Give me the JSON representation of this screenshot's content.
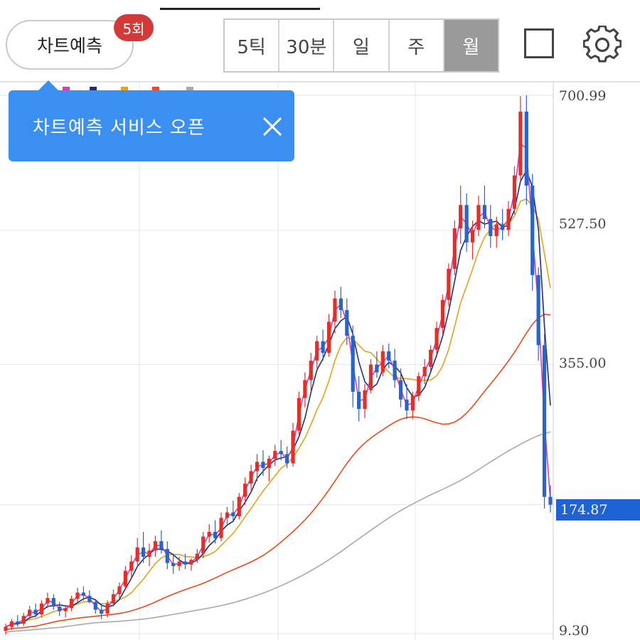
{
  "header": {
    "predict_label": "차트예측",
    "predict_badge": "5회",
    "periods": [
      {
        "label": "5틱",
        "active": false
      },
      {
        "label": "30분",
        "active": false
      },
      {
        "label": "일",
        "active": false
      },
      {
        "label": "주",
        "active": false
      },
      {
        "label": "월",
        "active": true
      }
    ],
    "icons": [
      "square-icon",
      "gear-icon"
    ]
  },
  "tooltip": {
    "text": "차트예측 서비스 오픈",
    "close_icon": "close-icon"
  },
  "price_axis": {
    "labels": [
      "700.99",
      "527.50",
      "355.00",
      "9.30"
    ],
    "current_price": "174.87",
    "current_color": "#1e63d6"
  },
  "colors": {
    "up": "#e0302a",
    "down": "#2a63c9",
    "ma5": "#d63bbd",
    "ma10": "#1f2f7a",
    "ma20": "#e3a21f",
    "ma60": "#ea4a1c",
    "ma120": "#aaaaaa"
  },
  "chart_data": {
    "type": "candlestick",
    "y_axis_ticks": [
      9.3,
      174.87,
      355.0,
      527.5,
      700.99
    ],
    "last_close": 174.87,
    "candles": [
      {
        "o": 13,
        "h": 22,
        "l": 8,
        "c": 18
      },
      {
        "o": 18,
        "h": 28,
        "l": 14,
        "c": 25
      },
      {
        "o": 25,
        "h": 33,
        "l": 18,
        "c": 22
      },
      {
        "o": 22,
        "h": 36,
        "l": 19,
        "c": 32
      },
      {
        "o": 32,
        "h": 45,
        "l": 28,
        "c": 40
      },
      {
        "o": 40,
        "h": 48,
        "l": 30,
        "c": 34
      },
      {
        "o": 34,
        "h": 52,
        "l": 30,
        "c": 48
      },
      {
        "o": 48,
        "h": 62,
        "l": 42,
        "c": 55
      },
      {
        "o": 55,
        "h": 60,
        "l": 40,
        "c": 44
      },
      {
        "o": 44,
        "h": 50,
        "l": 32,
        "c": 38
      },
      {
        "o": 38,
        "h": 46,
        "l": 30,
        "c": 42
      },
      {
        "o": 42,
        "h": 58,
        "l": 38,
        "c": 54
      },
      {
        "o": 54,
        "h": 68,
        "l": 50,
        "c": 62
      },
      {
        "o": 62,
        "h": 70,
        "l": 52,
        "c": 58
      },
      {
        "o": 58,
        "h": 65,
        "l": 48,
        "c": 50
      },
      {
        "o": 50,
        "h": 54,
        "l": 35,
        "c": 40
      },
      {
        "o": 40,
        "h": 48,
        "l": 28,
        "c": 35
      },
      {
        "o": 35,
        "h": 52,
        "l": 30,
        "c": 48
      },
      {
        "o": 48,
        "h": 66,
        "l": 44,
        "c": 60
      },
      {
        "o": 60,
        "h": 75,
        "l": 54,
        "c": 70
      },
      {
        "o": 70,
        "h": 96,
        "l": 66,
        "c": 90
      },
      {
        "o": 90,
        "h": 110,
        "l": 80,
        "c": 102
      },
      {
        "o": 102,
        "h": 132,
        "l": 95,
        "c": 120
      },
      {
        "o": 120,
        "h": 140,
        "l": 100,
        "c": 108
      },
      {
        "o": 108,
        "h": 125,
        "l": 96,
        "c": 116
      },
      {
        "o": 116,
        "h": 135,
        "l": 108,
        "c": 128
      },
      {
        "o": 128,
        "h": 142,
        "l": 112,
        "c": 118
      },
      {
        "o": 118,
        "h": 128,
        "l": 92,
        "c": 100
      },
      {
        "o": 100,
        "h": 112,
        "l": 86,
        "c": 96
      },
      {
        "o": 96,
        "h": 108,
        "l": 90,
        "c": 102
      },
      {
        "o": 102,
        "h": 112,
        "l": 92,
        "c": 98
      },
      {
        "o": 98,
        "h": 106,
        "l": 90,
        "c": 104
      },
      {
        "o": 104,
        "h": 118,
        "l": 100,
        "c": 112
      },
      {
        "o": 112,
        "h": 140,
        "l": 106,
        "c": 134
      },
      {
        "o": 134,
        "h": 150,
        "l": 126,
        "c": 140
      },
      {
        "o": 140,
        "h": 155,
        "l": 125,
        "c": 132
      },
      {
        "o": 132,
        "h": 165,
        "l": 128,
        "c": 158
      },
      {
        "o": 158,
        "h": 172,
        "l": 150,
        "c": 165
      },
      {
        "o": 165,
        "h": 180,
        "l": 155,
        "c": 160
      },
      {
        "o": 160,
        "h": 190,
        "l": 156,
        "c": 185
      },
      {
        "o": 185,
        "h": 210,
        "l": 175,
        "c": 202
      },
      {
        "o": 202,
        "h": 226,
        "l": 190,
        "c": 218
      },
      {
        "o": 218,
        "h": 240,
        "l": 205,
        "c": 230
      },
      {
        "o": 230,
        "h": 245,
        "l": 212,
        "c": 222
      },
      {
        "o": 222,
        "h": 238,
        "l": 205,
        "c": 234
      },
      {
        "o": 234,
        "h": 252,
        "l": 225,
        "c": 244
      },
      {
        "o": 244,
        "h": 258,
        "l": 232,
        "c": 240
      },
      {
        "o": 240,
        "h": 250,
        "l": 222,
        "c": 228
      },
      {
        "o": 228,
        "h": 280,
        "l": 224,
        "c": 270
      },
      {
        "o": 270,
        "h": 320,
        "l": 262,
        "c": 312
      },
      {
        "o": 312,
        "h": 345,
        "l": 300,
        "c": 335
      },
      {
        "o": 335,
        "h": 370,
        "l": 320,
        "c": 360
      },
      {
        "o": 360,
        "h": 392,
        "l": 350,
        "c": 385
      },
      {
        "o": 385,
        "h": 400,
        "l": 360,
        "c": 370
      },
      {
        "o": 370,
        "h": 420,
        "l": 365,
        "c": 410
      },
      {
        "o": 410,
        "h": 450,
        "l": 395,
        "c": 440
      },
      {
        "o": 440,
        "h": 455,
        "l": 415,
        "c": 425
      },
      {
        "o": 425,
        "h": 440,
        "l": 380,
        "c": 392
      },
      {
        "o": 392,
        "h": 405,
        "l": 300,
        "c": 320
      },
      {
        "o": 320,
        "h": 340,
        "l": 282,
        "c": 298
      },
      {
        "o": 298,
        "h": 330,
        "l": 286,
        "c": 322
      },
      {
        "o": 322,
        "h": 362,
        "l": 318,
        "c": 355
      },
      {
        "o": 355,
        "h": 372,
        "l": 338,
        "c": 345
      },
      {
        "o": 345,
        "h": 380,
        "l": 340,
        "c": 372
      },
      {
        "o": 372,
        "h": 382,
        "l": 350,
        "c": 360
      },
      {
        "o": 360,
        "h": 375,
        "l": 325,
        "c": 335
      },
      {
        "o": 335,
        "h": 350,
        "l": 300,
        "c": 310
      },
      {
        "o": 310,
        "h": 330,
        "l": 285,
        "c": 296
      },
      {
        "o": 296,
        "h": 320,
        "l": 285,
        "c": 315
      },
      {
        "o": 315,
        "h": 345,
        "l": 308,
        "c": 340
      },
      {
        "o": 340,
        "h": 362,
        "l": 330,
        "c": 352
      },
      {
        "o": 352,
        "h": 380,
        "l": 346,
        "c": 374
      },
      {
        "o": 374,
        "h": 410,
        "l": 368,
        "c": 402
      },
      {
        "o": 402,
        "h": 445,
        "l": 395,
        "c": 438
      },
      {
        "o": 438,
        "h": 485,
        "l": 430,
        "c": 478
      },
      {
        "o": 478,
        "h": 540,
        "l": 470,
        "c": 530
      },
      {
        "o": 530,
        "h": 585,
        "l": 510,
        "c": 560
      },
      {
        "o": 560,
        "h": 575,
        "l": 500,
        "c": 512
      },
      {
        "o": 512,
        "h": 540,
        "l": 490,
        "c": 528
      },
      {
        "o": 528,
        "h": 572,
        "l": 520,
        "c": 560
      },
      {
        "o": 560,
        "h": 585,
        "l": 530,
        "c": 542
      },
      {
        "o": 542,
        "h": 560,
        "l": 505,
        "c": 520
      },
      {
        "o": 520,
        "h": 545,
        "l": 505,
        "c": 535
      },
      {
        "o": 535,
        "h": 555,
        "l": 515,
        "c": 528
      },
      {
        "o": 528,
        "h": 565,
        "l": 520,
        "c": 555
      },
      {
        "o": 555,
        "h": 610,
        "l": 548,
        "c": 598
      },
      {
        "o": 598,
        "h": 700,
        "l": 590,
        "c": 680
      },
      {
        "o": 680,
        "h": 701,
        "l": 560,
        "c": 585
      },
      {
        "o": 585,
        "h": 600,
        "l": 450,
        "c": 470
      },
      {
        "o": 470,
        "h": 480,
        "l": 360,
        "c": 380
      },
      {
        "o": 380,
        "h": 395,
        "l": 170,
        "c": 185
      },
      {
        "o": 185,
        "h": 200,
        "l": 165,
        "c": 174.87
      }
    ]
  }
}
